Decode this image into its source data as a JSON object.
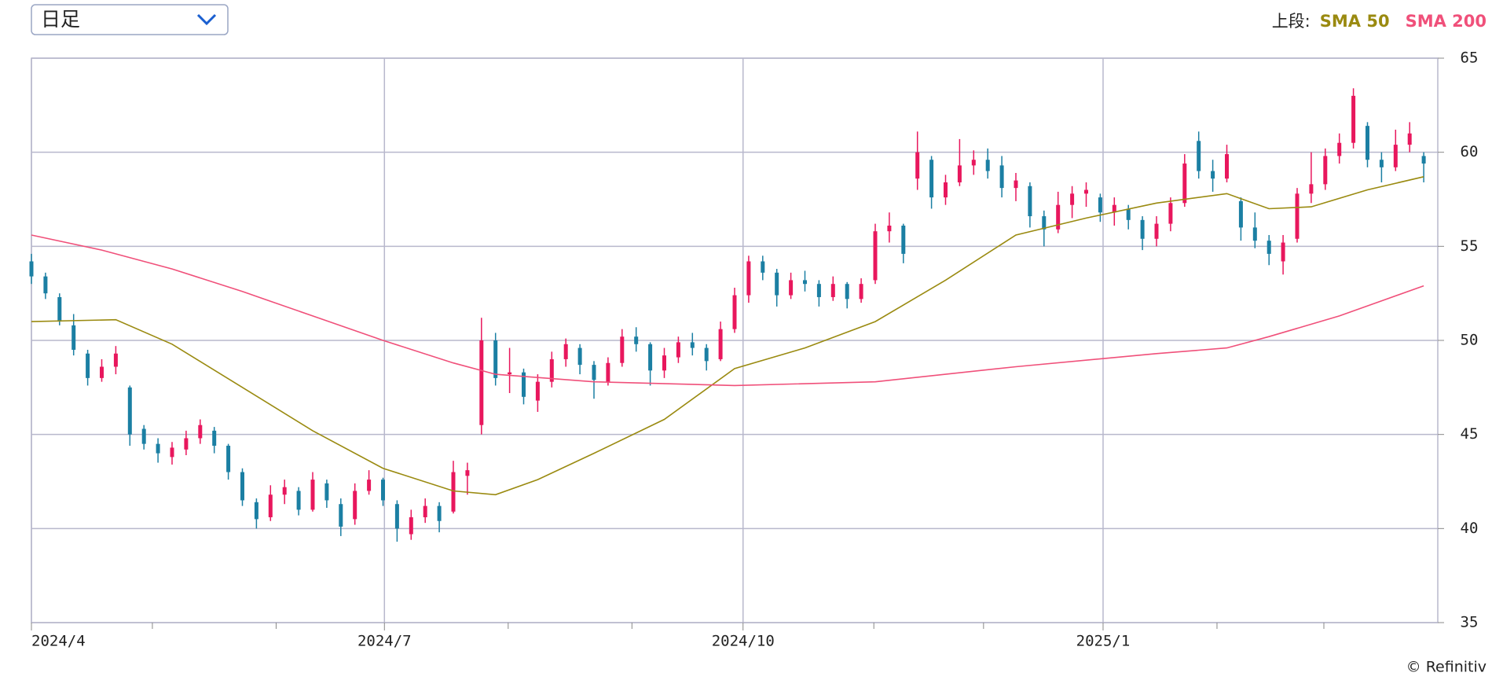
{
  "chart_data": {
    "type": "candlestick",
    "interval_label": "日足",
    "legend_prefix": "上段:",
    "source": "© Refinitiv",
    "up_color": "#e8175d",
    "down_color": "#1b7fa3",
    "grid": true,
    "xlim": [
      0,
      100
    ],
    "ylim": [
      35,
      65
    ],
    "yticks": [
      35,
      40,
      45,
      50,
      55,
      60,
      65
    ],
    "xticks": [
      {
        "value": 0,
        "label": "2024/4"
      },
      {
        "value": 25.1,
        "label": "2024/7"
      },
      {
        "value": 50.6,
        "label": "2024/10"
      },
      {
        "value": 76.2,
        "label": "2025/1"
      }
    ],
    "xminor": [
      8.6,
      17.4,
      33.9,
      42.7,
      59.9,
      67.7,
      84.3,
      91.9
    ],
    "candles": [
      [
        54.2,
        54.6,
        53.0,
        53.4
      ],
      [
        53.4,
        53.6,
        52.2,
        52.5
      ],
      [
        52.3,
        52.5,
        50.8,
        51.0
      ],
      [
        50.8,
        51.4,
        49.2,
        49.5
      ],
      [
        49.3,
        49.5,
        47.6,
        48.0
      ],
      [
        48.0,
        49.0,
        47.8,
        48.6
      ],
      [
        48.6,
        49.7,
        48.2,
        49.3
      ],
      [
        47.5,
        47.6,
        44.4,
        45.0
      ],
      [
        45.3,
        45.5,
        44.2,
        44.5
      ],
      [
        44.5,
        44.8,
        43.5,
        44.0
      ],
      [
        43.8,
        44.6,
        43.4,
        44.3
      ],
      [
        44.2,
        45.2,
        43.9,
        44.8
      ],
      [
        44.8,
        45.8,
        44.5,
        45.5
      ],
      [
        45.2,
        45.4,
        44.0,
        44.4
      ],
      [
        44.4,
        44.5,
        42.6,
        43.0
      ],
      [
        43.0,
        43.2,
        41.2,
        41.5
      ],
      [
        41.4,
        41.6,
        40.0,
        40.5
      ],
      [
        40.6,
        42.3,
        40.4,
        41.8
      ],
      [
        41.8,
        42.6,
        41.3,
        42.2
      ],
      [
        42.0,
        42.2,
        40.7,
        41.0
      ],
      [
        41.0,
        43.0,
        40.9,
        42.6
      ],
      [
        42.4,
        42.6,
        41.1,
        41.5
      ],
      [
        41.3,
        41.6,
        39.6,
        40.1
      ],
      [
        40.5,
        42.4,
        40.2,
        42.0
      ],
      [
        42.0,
        43.1,
        41.8,
        42.6
      ],
      [
        42.6,
        42.7,
        41.2,
        41.5
      ],
      [
        41.3,
        41.5,
        39.3,
        40.0
      ],
      [
        39.7,
        41.0,
        39.4,
        40.6
      ],
      [
        40.6,
        41.6,
        40.3,
        41.2
      ],
      [
        41.2,
        41.4,
        39.8,
        40.4
      ],
      [
        40.9,
        43.6,
        40.8,
        43.0
      ],
      [
        42.8,
        43.5,
        41.8,
        43.1
      ],
      [
        45.5,
        51.2,
        45.0,
        50.0
      ],
      [
        50.0,
        50.4,
        47.6,
        48.0
      ],
      [
        48.2,
        49.6,
        47.2,
        48.3
      ],
      [
        48.3,
        48.5,
        46.6,
        47.0
      ],
      [
        46.8,
        48.2,
        46.2,
        47.8
      ],
      [
        47.8,
        49.4,
        47.5,
        49.0
      ],
      [
        49.0,
        50.1,
        48.6,
        49.8
      ],
      [
        49.6,
        49.8,
        48.2,
        48.7
      ],
      [
        48.7,
        48.9,
        46.9,
        47.9
      ],
      [
        47.8,
        49.1,
        47.6,
        48.8
      ],
      [
        48.8,
        50.6,
        48.6,
        50.2
      ],
      [
        50.2,
        50.7,
        49.4,
        49.8
      ],
      [
        49.8,
        49.9,
        47.6,
        48.4
      ],
      [
        48.4,
        49.6,
        48.0,
        49.2
      ],
      [
        49.1,
        50.2,
        48.8,
        49.9
      ],
      [
        49.9,
        50.4,
        49.2,
        49.6
      ],
      [
        49.6,
        49.8,
        48.4,
        48.9
      ],
      [
        49.0,
        51.0,
        48.9,
        50.6
      ],
      [
        50.6,
        52.8,
        50.4,
        52.4
      ],
      [
        52.4,
        54.5,
        52.0,
        54.2
      ],
      [
        54.2,
        54.5,
        53.2,
        53.6
      ],
      [
        53.6,
        53.8,
        51.8,
        52.4
      ],
      [
        52.4,
        53.6,
        52.2,
        53.2
      ],
      [
        53.2,
        53.7,
        52.6,
        53.0
      ],
      [
        53.0,
        53.2,
        51.8,
        52.3
      ],
      [
        52.3,
        53.4,
        52.1,
        53.0
      ],
      [
        53.0,
        53.1,
        51.7,
        52.2
      ],
      [
        52.2,
        53.3,
        52.0,
        53.0
      ],
      [
        53.2,
        56.2,
        53.0,
        55.8
      ],
      [
        55.8,
        56.8,
        55.2,
        56.1
      ],
      [
        56.1,
        56.2,
        54.1,
        54.6
      ],
      [
        58.6,
        61.1,
        58.0,
        60.0
      ],
      [
        59.6,
        59.8,
        57.0,
        57.6
      ],
      [
        57.6,
        58.8,
        57.2,
        58.4
      ],
      [
        58.4,
        60.7,
        58.2,
        59.3
      ],
      [
        59.3,
        60.1,
        58.8,
        59.6
      ],
      [
        59.6,
        60.2,
        58.6,
        59.0
      ],
      [
        59.3,
        59.8,
        57.6,
        58.1
      ],
      [
        58.1,
        58.9,
        57.4,
        58.5
      ],
      [
        58.2,
        58.4,
        56.0,
        56.6
      ],
      [
        56.6,
        56.9,
        55.0,
        55.9
      ],
      [
        55.9,
        57.9,
        55.7,
        57.2
      ],
      [
        57.2,
        58.2,
        56.5,
        57.8
      ],
      [
        57.8,
        58.4,
        57.1,
        58.0
      ],
      [
        57.6,
        57.8,
        56.3,
        56.8
      ],
      [
        56.8,
        57.6,
        56.1,
        57.2
      ],
      [
        57.0,
        57.2,
        55.9,
        56.4
      ],
      [
        56.4,
        56.6,
        54.8,
        55.4
      ],
      [
        55.4,
        56.6,
        55.0,
        56.2
      ],
      [
        56.2,
        57.6,
        55.8,
        57.3
      ],
      [
        57.3,
        59.9,
        57.1,
        59.4
      ],
      [
        60.6,
        61.1,
        58.6,
        59.0
      ],
      [
        59.0,
        59.6,
        57.9,
        58.6
      ],
      [
        58.6,
        60.4,
        58.4,
        59.9
      ],
      [
        57.4,
        57.6,
        55.3,
        56.0
      ],
      [
        56.0,
        56.8,
        54.9,
        55.3
      ],
      [
        55.3,
        55.6,
        54.0,
        54.6
      ],
      [
        54.2,
        55.6,
        53.5,
        55.2
      ],
      [
        55.4,
        58.1,
        55.2,
        57.8
      ],
      [
        57.8,
        60.0,
        57.3,
        58.3
      ],
      [
        58.3,
        60.2,
        58.0,
        59.8
      ],
      [
        59.8,
        61.0,
        59.4,
        60.5
      ],
      [
        60.5,
        63.4,
        60.2,
        63.0
      ],
      [
        61.4,
        61.6,
        59.2,
        59.6
      ],
      [
        59.6,
        60.0,
        58.4,
        59.2
      ],
      [
        59.2,
        61.2,
        59.0,
        60.4
      ],
      [
        60.4,
        61.6,
        60.0,
        61.0
      ],
      [
        59.8,
        60.0,
        58.4,
        59.4
      ]
    ],
    "series": [
      {
        "name": "SMA 50",
        "color": "#9a8a10",
        "x": [
          0,
          6,
          10,
          15,
          20,
          25,
          30,
          33,
          36,
          40,
          45,
          50,
          55,
          60,
          65,
          70,
          75,
          80,
          85,
          88,
          91,
          95,
          99
        ],
        "values": [
          51,
          51.1,
          49.8,
          47.5,
          45.2,
          43.2,
          42.0,
          41.8,
          42.6,
          44.0,
          45.8,
          48.5,
          49.6,
          51.0,
          53.2,
          55.6,
          56.5,
          57.3,
          57.8,
          57.0,
          57.1,
          58.0,
          58.7
        ]
      },
      {
        "name": "SMA 200",
        "color": "#f0507a",
        "x": [
          0,
          5,
          10,
          15,
          20,
          25,
          30,
          33,
          40,
          50,
          60,
          70,
          80,
          85,
          88,
          93,
          99
        ],
        "values": [
          55.6,
          54.8,
          53.8,
          52.6,
          51.3,
          50.0,
          48.8,
          48.2,
          47.8,
          47.6,
          47.8,
          48.6,
          49.3,
          49.6,
          50.2,
          51.3,
          52.9
        ]
      }
    ]
  }
}
